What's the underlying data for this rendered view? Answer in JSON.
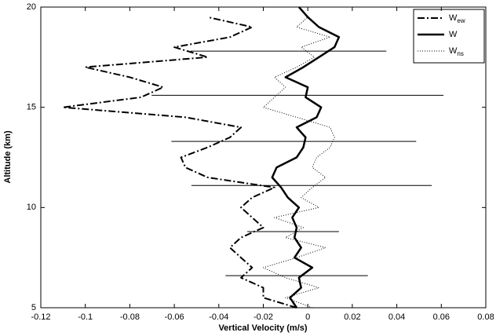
{
  "chart_data": {
    "type": "line",
    "xlabel": "Vertical Velocity (m/s)",
    "ylabel": "Altitude (km)",
    "xlim": [
      -0.12,
      0.08
    ],
    "xticks": [
      -0.12,
      -0.1,
      -0.08,
      -0.06,
      -0.04,
      -0.02,
      0,
      0.02,
      0.04,
      0.06,
      0.08
    ],
    "ylim": [
      5,
      20
    ],
    "yticks": [
      5,
      10,
      15,
      20
    ],
    "legend": "upper right",
    "y": [
      5,
      5.5,
      6,
      6.5,
      7,
      7.5,
      8,
      8.5,
      9,
      9.5,
      10,
      10.5,
      11,
      11.5,
      12,
      12.5,
      13,
      13.5,
      14,
      14.5,
      15,
      15.5,
      16,
      16.5,
      17,
      17.5,
      18,
      18.5,
      19,
      19.5,
      20
    ],
    "series": [
      {
        "name": "W",
        "subscript": "ew",
        "color": "#000000",
        "linestyle": "dashdot",
        "values": [
          -0.005,
          -0.02,
          -0.02,
          -0.03,
          -0.025,
          -0.03,
          -0.035,
          -0.03,
          -0.02,
          -0.025,
          -0.03,
          -0.025,
          -0.015,
          -0.045,
          -0.055,
          -0.057,
          -0.045,
          -0.035,
          -0.03,
          -0.055,
          -0.11,
          -0.075,
          -0.065,
          -0.08,
          -0.1,
          -0.045,
          -0.06,
          -0.035,
          -0.025,
          -0.045,
          null
        ]
      },
      {
        "name": "W",
        "color": "#000000",
        "linestyle": "solid",
        "values": [
          -0.005,
          -0.008,
          -0.003,
          -0.004,
          0.002,
          -0.006,
          -0.003,
          -0.006,
          -0.005,
          -0.007,
          -0.004,
          -0.009,
          -0.012,
          -0.016,
          -0.014,
          -0.005,
          -0.002,
          -0.001,
          -0.005,
          0.004,
          0.006,
          -0.001,
          0,
          -0.01,
          -0.002,
          0.005,
          0.012,
          0.014,
          0.005,
          0,
          -0.004
        ]
      },
      {
        "name": "W",
        "subscript": "ns",
        "color": "#000000",
        "linestyle": "dotted",
        "values": [
          0.002,
          -0.01,
          0.005,
          -0.01,
          -0.02,
          -0.005,
          0.008,
          -0.01,
          -0.002,
          -0.015,
          0.005,
          -0.003,
          0.002,
          0.008,
          0.002,
          0.004,
          0.01,
          0.012,
          0.01,
          -0.005,
          -0.02,
          -0.015,
          -0.01,
          -0.015,
          -0.005,
          0.003,
          -0.003,
          0.01,
          -0.005,
          0,
          null
        ]
      }
    ],
    "error_bars": {
      "color": "#000000",
      "y": [
        6.6,
        8.8,
        11.1,
        13.3,
        15.6,
        17.8
      ],
      "values": [
        -0.005,
        -0.0066,
        0.0017,
        -0.0063,
        -0.0046,
        -0.0087
      ],
      "errors": [
        0.032,
        0.0206,
        0.054,
        0.055,
        0.0656,
        0.044
      ]
    }
  }
}
